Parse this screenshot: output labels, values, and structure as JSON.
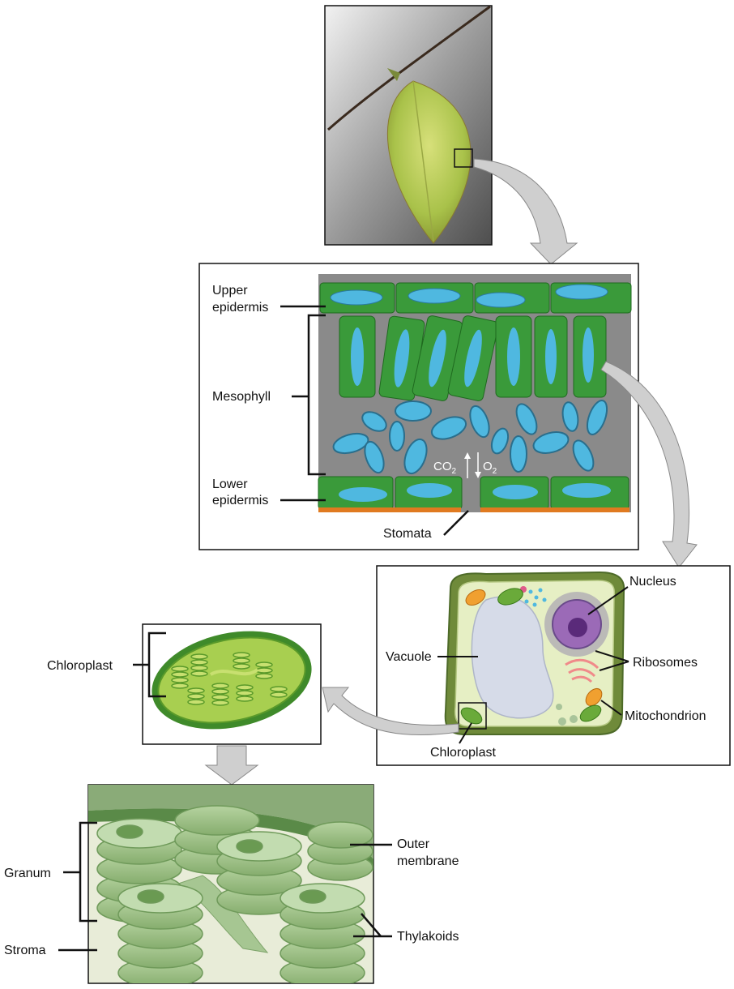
{
  "leaf_cross_section": {
    "upper_epidermis_line1": "Upper",
    "upper_epidermis_line2": "epidermis",
    "mesophyll": "Mesophyll",
    "lower_epidermis_line1": "Lower",
    "lower_epidermis_line2": "epidermis",
    "stomata": "Stomata",
    "co2": "CO",
    "co2_sub": "2",
    "o2": "O",
    "o2_sub": "2"
  },
  "plant_cell": {
    "nucleus": "Nucleus",
    "vacuole": "Vacuole",
    "ribosomes": "Ribosomes",
    "mitochondrion": "Mitochondrion",
    "chloroplast": "Chloroplast"
  },
  "chloroplast_panel": {
    "chloroplast": "Chloroplast"
  },
  "thylakoid_panel": {
    "granum": "Granum",
    "stroma": "Stroma",
    "outer_membrane_line1": "Outer",
    "outer_membrane_line2": "membrane",
    "thylakoids": "Thylakoids"
  },
  "colors": {
    "leaf_green": "#3a9a3a",
    "cell_blue": "#4fb8e0",
    "chloroplast_green": "#8cc63f",
    "arrow_gray": "#cccccc"
  }
}
